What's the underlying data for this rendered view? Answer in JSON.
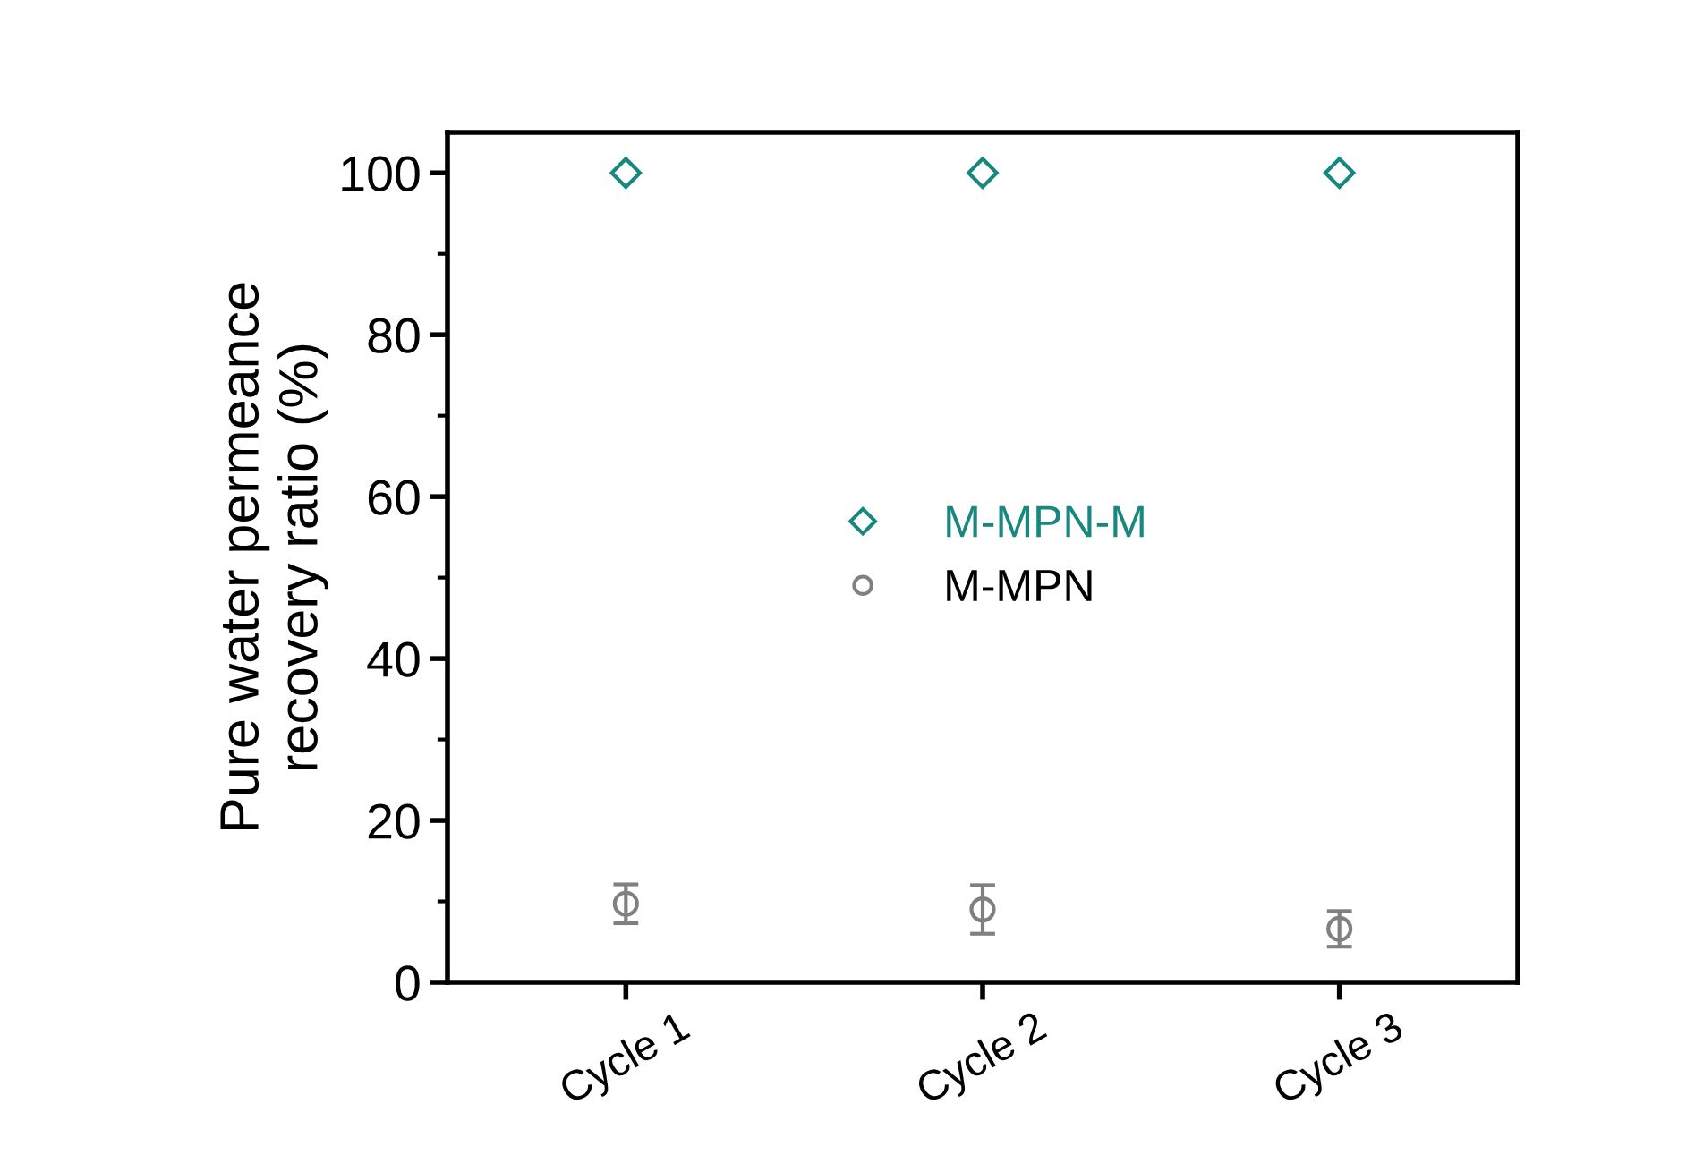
{
  "chart_data": {
    "type": "scatter",
    "ylabel": "Pure water permeance\nrecovery ratio (%)",
    "categories": [
      "Cycle 1",
      "Cycle 2",
      "Cycle 3"
    ],
    "series": [
      {
        "name": "M-MPN-M",
        "color": "#17877f",
        "marker": "diamond",
        "values": [
          100,
          100,
          100
        ]
      },
      {
        "name": "M-MPN",
        "color": "#808080",
        "marker": "circle",
        "values": [
          9.7,
          9.0,
          6.6
        ],
        "errors": [
          2.4,
          3.0,
          2.2
        ]
      }
    ],
    "ylim": [
      0,
      105
    ],
    "yticks": [
      0,
      20,
      40,
      60,
      80,
      100
    ],
    "grid": false,
    "legend": "center"
  }
}
